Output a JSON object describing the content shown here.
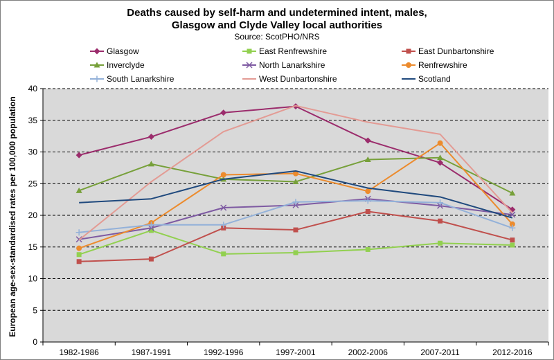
{
  "chart_data": {
    "type": "line",
    "title_line1": "Deaths caused by self-harm and undetermined intent, males,",
    "title_line2": "Glasgow and Clyde Valley local authorities",
    "subtitle": "Source: ScotPHO/NRS",
    "xlabel": "",
    "ylabel": "European age-sex-standardised rates per 100,000 population",
    "ylim": [
      0,
      40
    ],
    "yticks": [
      "0",
      "5",
      "10",
      "15",
      "20",
      "25",
      "30",
      "35",
      "40"
    ],
    "categories": [
      "1982-1986",
      "1987-1991",
      "1992-1996",
      "1997-2001",
      "2002-2006",
      "2007-2011",
      "2012-2016"
    ],
    "grid": "horizontal dashed",
    "legend_position": "top",
    "plot_background": "#d9d9d9",
    "series": [
      {
        "name": "Glasgow",
        "color": "#9b2c6c",
        "marker": "diamond",
        "values": [
          29.5,
          32.4,
          36.2,
          37.2,
          31.8,
          28.3,
          20.9
        ]
      },
      {
        "name": "East Renfrewshire",
        "color": "#92d050",
        "marker": "square",
        "values": [
          13.8,
          17.6,
          13.9,
          14.1,
          14.6,
          15.6,
          15.3
        ]
      },
      {
        "name": "East Dunbartonshire",
        "color": "#c0504d",
        "marker": "square",
        "values": [
          12.7,
          13.1,
          18.0,
          17.7,
          20.6,
          19.1,
          16.1
        ]
      },
      {
        "name": "Inverclyde",
        "color": "#77a03a",
        "marker": "triangle",
        "values": [
          23.9,
          28.1,
          25.7,
          25.3,
          28.8,
          29.1,
          23.5
        ]
      },
      {
        "name": "North Lanarkshire",
        "color": "#7e5aa2",
        "marker": "x",
        "values": [
          16.2,
          18.0,
          21.2,
          21.6,
          22.6,
          21.5,
          20.1
        ]
      },
      {
        "name": "Renfrewshire",
        "color": "#ec8b2d",
        "marker": "circle",
        "values": [
          14.8,
          18.8,
          26.4,
          26.6,
          23.8,
          31.4,
          18.6
        ]
      },
      {
        "name": "South Lanarkshire",
        "color": "#93b1d9",
        "marker": "plus",
        "values": [
          17.3,
          18.5,
          18.5,
          22.1,
          22.3,
          22.0,
          18.0
        ]
      },
      {
        "name": "West Dunbartonshire",
        "color": "#e39b94",
        "marker": "none",
        "values": [
          16.1,
          25.3,
          33.2,
          37.3,
          34.7,
          32.8,
          20.4
        ]
      },
      {
        "name": "Scotland",
        "color": "#1f497d",
        "marker": "none",
        "values": [
          22.0,
          22.6,
          25.7,
          27.0,
          24.3,
          22.9,
          19.6
        ]
      }
    ]
  }
}
